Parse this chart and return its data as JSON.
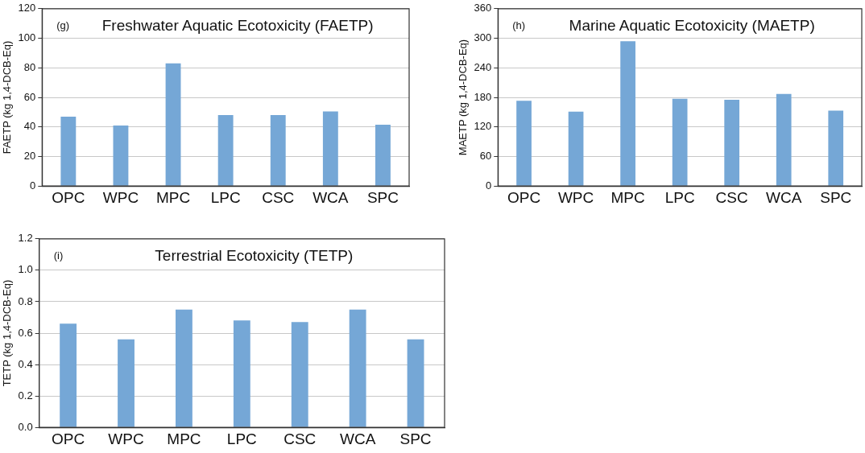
{
  "chart_data": [
    {
      "type": "bar",
      "title": "Freshwater Aquatic Ecotoxicity (FAETP)",
      "annotations": [
        "(g)"
      ],
      "ylabel": "FAETP (kg 1,4-DCB-Eq)",
      "categories": [
        "OPC",
        "WPC",
        "MPC",
        "LPC",
        "CSC",
        "WCA",
        "SPC"
      ],
      "values": [
        47,
        41,
        83,
        48,
        48,
        50.5,
        41.5
      ],
      "color": "#75a7d6",
      "ylim": [
        0,
        120
      ],
      "yticks": [
        0,
        20,
        40,
        60,
        80,
        100,
        120
      ],
      "grid": "y"
    },
    {
      "type": "bar",
      "title": "Marine Aquatic Ecotoxicity (MAETP)",
      "annotations": [
        "(h)"
      ],
      "ylabel": "MAETP (kg 1,4-DCB-Eq)",
      "categories": [
        "OPC",
        "WPC",
        "MPC",
        "LPC",
        "CSC",
        "WCA",
        "SPC"
      ],
      "values": [
        173,
        151,
        294,
        177,
        175,
        187,
        153
      ],
      "color": "#75a7d6",
      "ylim": [
        0,
        360
      ],
      "yticks": [
        0,
        60,
        120,
        180,
        240,
        300,
        360
      ],
      "grid": "y"
    },
    {
      "type": "bar",
      "title": "Terrestrial Ecotoxicity (TETP)",
      "annotations": [
        "(i)"
      ],
      "ylabel": "TETP (kg 1,4-DCB-Eq)",
      "categories": [
        "OPC",
        "WPC",
        "MPC",
        "LPC",
        "CSC",
        "WCA",
        "SPC"
      ],
      "values": [
        0.66,
        0.56,
        0.75,
        0.68,
        0.67,
        0.75,
        0.56
      ],
      "color": "#75a7d6",
      "ylim": [
        0,
        1.2
      ],
      "yticks": [
        {
          "value": 0,
          "label": "0.0"
        },
        0.2,
        0.4,
        0.6,
        0.8,
        {
          "value": 1,
          "label": "1.0"
        },
        1.2
      ],
      "grid": "y"
    }
  ]
}
